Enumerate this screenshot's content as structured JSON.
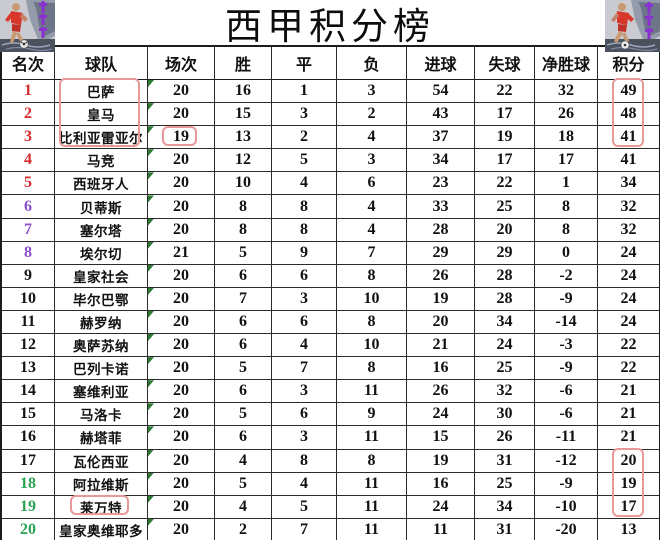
{
  "title": "西甲积分榜",
  "columns": [
    "名次",
    "球队",
    "场次",
    "胜",
    "平",
    "负",
    "进球",
    "失球",
    "净胜球",
    "积分"
  ],
  "rows": [
    {
      "rank": "1",
      "team": "巴萨",
      "played": "20",
      "win": "16",
      "draw": "1",
      "loss": "3",
      "gf": "54",
      "ga": "22",
      "gd": "32",
      "pts": "49",
      "rank_color": "red"
    },
    {
      "rank": "2",
      "team": "皇马",
      "played": "20",
      "win": "15",
      "draw": "3",
      "loss": "2",
      "gf": "43",
      "ga": "17",
      "gd": "26",
      "pts": "48",
      "rank_color": "red"
    },
    {
      "rank": "3",
      "team": "比利亚雷亚尔",
      "played": "19",
      "win": "13",
      "draw": "2",
      "loss": "4",
      "gf": "37",
      "ga": "19",
      "gd": "18",
      "pts": "41",
      "rank_color": "red"
    },
    {
      "rank": "4",
      "team": "马竞",
      "played": "20",
      "win": "12",
      "draw": "5",
      "loss": "3",
      "gf": "34",
      "ga": "17",
      "gd": "17",
      "pts": "41",
      "rank_color": "red"
    },
    {
      "rank": "5",
      "team": "西班牙人",
      "played": "20",
      "win": "10",
      "draw": "4",
      "loss": "6",
      "gf": "23",
      "ga": "22",
      "gd": "1",
      "pts": "34",
      "rank_color": "red"
    },
    {
      "rank": "6",
      "team": "贝蒂斯",
      "played": "20",
      "win": "8",
      "draw": "8",
      "loss": "4",
      "gf": "33",
      "ga": "25",
      "gd": "8",
      "pts": "32",
      "rank_color": "purple"
    },
    {
      "rank": "7",
      "team": "塞尔塔",
      "played": "20",
      "win": "8",
      "draw": "8",
      "loss": "4",
      "gf": "28",
      "ga": "20",
      "gd": "8",
      "pts": "32",
      "rank_color": "purple"
    },
    {
      "rank": "8",
      "team": "埃尔切",
      "played": "21",
      "win": "5",
      "draw": "9",
      "loss": "7",
      "gf": "29",
      "ga": "29",
      "gd": "0",
      "pts": "24",
      "rank_color": "purple"
    },
    {
      "rank": "9",
      "team": "皇家社会",
      "played": "20",
      "win": "6",
      "draw": "6",
      "loss": "8",
      "gf": "26",
      "ga": "28",
      "gd": "-2",
      "pts": "24",
      "rank_color": "black"
    },
    {
      "rank": "10",
      "team": "毕尔巴鄂",
      "played": "20",
      "win": "7",
      "draw": "3",
      "loss": "10",
      "gf": "19",
      "ga": "28",
      "gd": "-9",
      "pts": "24",
      "rank_color": "black"
    },
    {
      "rank": "11",
      "team": "赫罗纳",
      "played": "20",
      "win": "6",
      "draw": "6",
      "loss": "8",
      "gf": "20",
      "ga": "34",
      "gd": "-14",
      "pts": "24",
      "rank_color": "black"
    },
    {
      "rank": "12",
      "team": "奥萨苏纳",
      "played": "20",
      "win": "6",
      "draw": "4",
      "loss": "10",
      "gf": "21",
      "ga": "24",
      "gd": "-3",
      "pts": "22",
      "rank_color": "black"
    },
    {
      "rank": "13",
      "team": "巴列卡诺",
      "played": "20",
      "win": "5",
      "draw": "7",
      "loss": "8",
      "gf": "16",
      "ga": "25",
      "gd": "-9",
      "pts": "22",
      "rank_color": "black"
    },
    {
      "rank": "14",
      "team": "塞维利亚",
      "played": "20",
      "win": "6",
      "draw": "3",
      "loss": "11",
      "gf": "26",
      "ga": "32",
      "gd": "-6",
      "pts": "21",
      "rank_color": "black"
    },
    {
      "rank": "15",
      "team": "马洛卡",
      "played": "20",
      "win": "5",
      "draw": "6",
      "loss": "9",
      "gf": "24",
      "ga": "30",
      "gd": "-6",
      "pts": "21",
      "rank_color": "black"
    },
    {
      "rank": "16",
      "team": "赫塔菲",
      "played": "20",
      "win": "6",
      "draw": "3",
      "loss": "11",
      "gf": "15",
      "ga": "26",
      "gd": "-11",
      "pts": "21",
      "rank_color": "black"
    },
    {
      "rank": "17",
      "team": "瓦伦西亚",
      "played": "20",
      "win": "4",
      "draw": "8",
      "loss": "8",
      "gf": "19",
      "ga": "31",
      "gd": "-12",
      "pts": "20",
      "rank_color": "black"
    },
    {
      "rank": "18",
      "team": "阿拉维斯",
      "played": "20",
      "win": "5",
      "draw": "4",
      "loss": "11",
      "gf": "16",
      "ga": "25",
      "gd": "-9",
      "pts": "19",
      "rank_color": "green"
    },
    {
      "rank": "19",
      "team": "莱万特",
      "played": "20",
      "win": "4",
      "draw": "5",
      "loss": "11",
      "gf": "24",
      "ga": "34",
      "gd": "-10",
      "pts": "17",
      "rank_color": "green"
    },
    {
      "rank": "20",
      "team": "皇家奥维耶多",
      "played": "20",
      "win": "2",
      "draw": "7",
      "loss": "11",
      "gf": "11",
      "ga": "31",
      "gd": "-20",
      "pts": "13",
      "rank_color": "green"
    }
  ],
  "annotations": [
    {
      "label": "top-three-teams-red-box",
      "col": "team",
      "row_start": 1,
      "row_end": 3
    },
    {
      "label": "villarreal-played-19-red-box",
      "col": "played",
      "row_start": 3,
      "row_end": 3
    },
    {
      "label": "top-three-points-red-box",
      "col": "pts",
      "row_start": 1,
      "row_end": 3
    },
    {
      "label": "lower-table-points-red-box",
      "col": "pts",
      "row_start": 17,
      "row_end": 19
    },
    {
      "label": "levante-team-red-box",
      "col": "team",
      "row_start": 19,
      "row_end": 19
    }
  ],
  "colors": {
    "rank_red": "#d52b2b",
    "rank_purple": "#8a4fc8",
    "rank_black": "#141414",
    "rank_green": "#2aa352",
    "highlight_box": "#e9989a",
    "marker_green": "#2d7a32",
    "grid_line": "#2b2b2b"
  },
  "icons": {
    "corner_artwork": "football-player-illustration"
  }
}
